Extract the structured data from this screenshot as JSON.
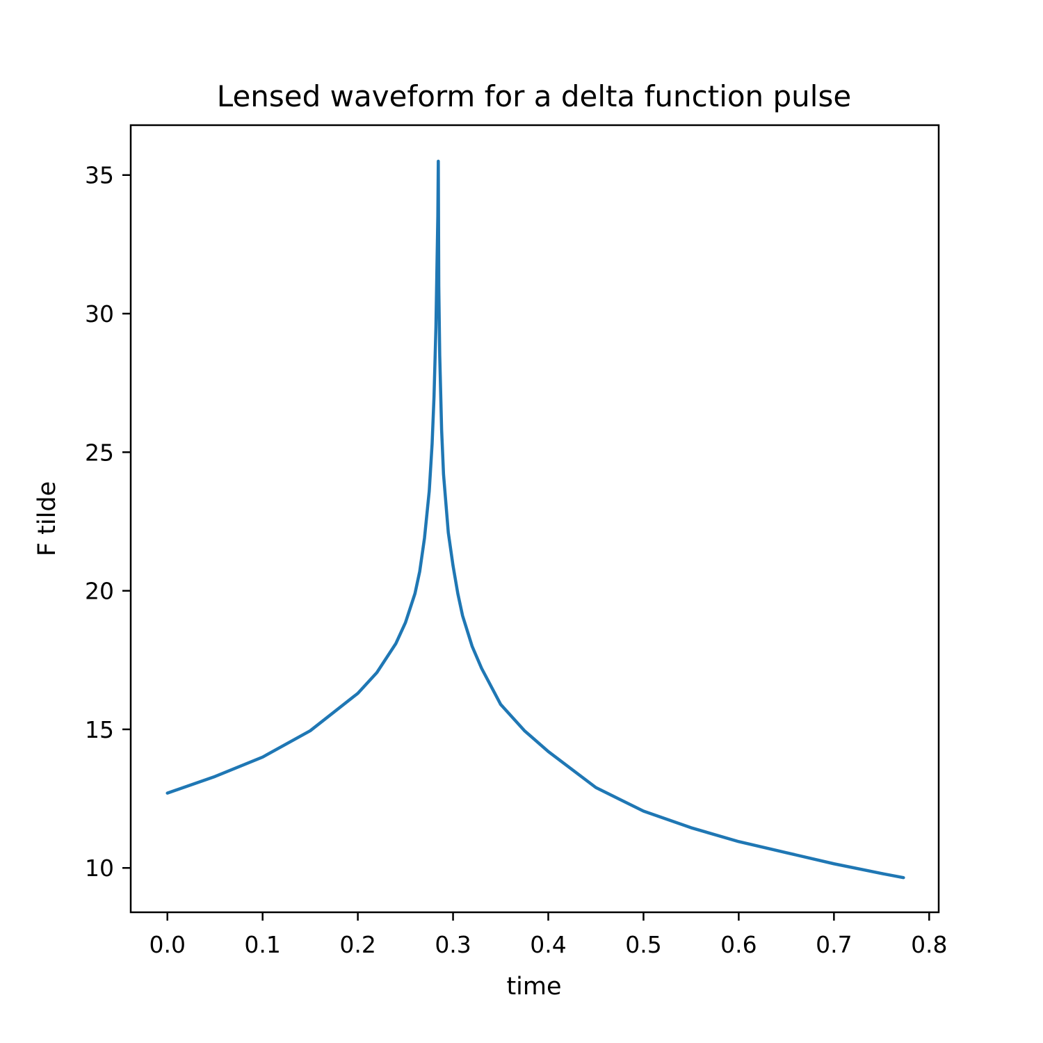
{
  "chart_data": {
    "type": "line",
    "title": "Lensed waveform for a delta function pulse",
    "xlabel": "time",
    "ylabel": "F tilde",
    "xlim": [
      -0.0385,
      0.81
    ],
    "ylim": [
      8.4,
      36.8
    ],
    "xticks": [
      {
        "value": 0.0,
        "label": "0.0"
      },
      {
        "value": 0.1,
        "label": "0.1"
      },
      {
        "value": 0.2,
        "label": "0.2"
      },
      {
        "value": 0.3,
        "label": "0.3"
      },
      {
        "value": 0.4,
        "label": "0.4"
      },
      {
        "value": 0.5,
        "label": "0.5"
      },
      {
        "value": 0.6,
        "label": "0.6"
      },
      {
        "value": 0.7,
        "label": "0.7"
      },
      {
        "value": 0.8,
        "label": "0.8"
      }
    ],
    "yticks": [
      {
        "value": 10,
        "label": "10"
      },
      {
        "value": 15,
        "label": "15"
      },
      {
        "value": 20,
        "label": "20"
      },
      {
        "value": 25,
        "label": "25"
      },
      {
        "value": 30,
        "label": "30"
      },
      {
        "value": 35,
        "label": "35"
      }
    ],
    "grid": false,
    "legend": "none",
    "series": [
      {
        "color": "#1f77b4",
        "x": [
          0.0,
          0.05,
          0.1,
          0.15,
          0.2,
          0.22,
          0.24,
          0.25,
          0.26,
          0.265,
          0.27,
          0.275,
          0.278,
          0.28,
          0.282,
          0.283,
          0.284,
          0.2845,
          0.285,
          0.286,
          0.288,
          0.29,
          0.295,
          0.3,
          0.305,
          0.31,
          0.32,
          0.33,
          0.35,
          0.375,
          0.4,
          0.45,
          0.5,
          0.55,
          0.6,
          0.65,
          0.7,
          0.75,
          0.773
        ],
        "y": [
          12.7,
          13.3,
          14.0,
          14.95,
          16.3,
          17.05,
          18.1,
          18.85,
          19.9,
          20.7,
          21.9,
          23.6,
          25.3,
          27.0,
          29.5,
          31.5,
          33.5,
          35.5,
          31.0,
          28.5,
          25.8,
          24.2,
          22.1,
          20.9,
          19.9,
          19.1,
          18.0,
          17.2,
          15.9,
          14.95,
          14.2,
          12.9,
          12.05,
          11.45,
          10.95,
          10.55,
          10.15,
          9.8,
          9.65
        ]
      }
    ]
  }
}
